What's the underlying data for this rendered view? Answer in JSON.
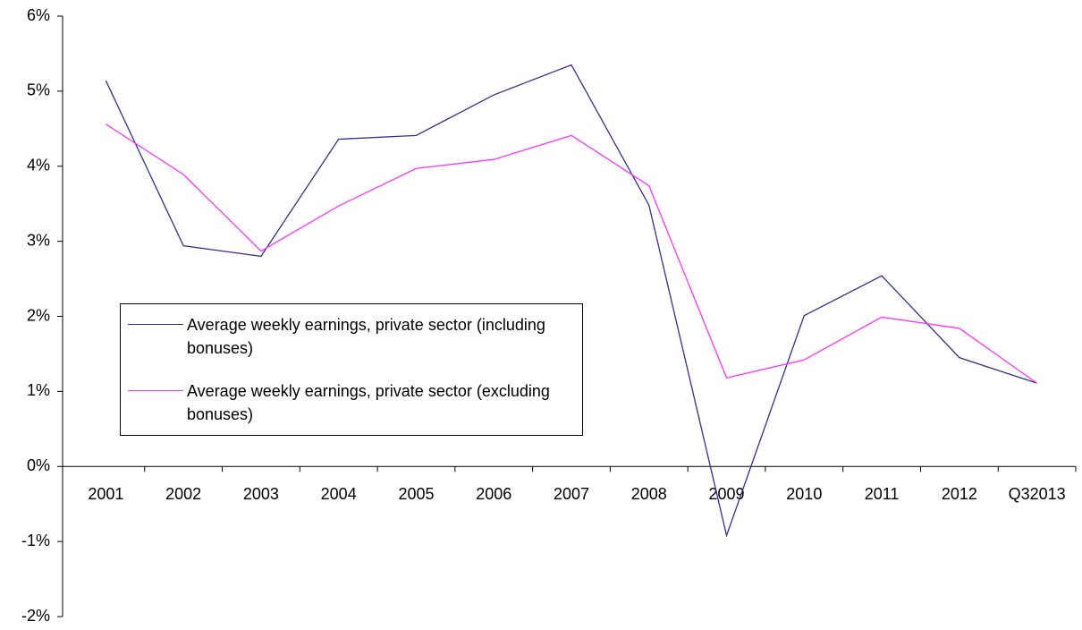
{
  "chart_data": {
    "type": "line",
    "categories": [
      "2001",
      "2002",
      "2003",
      "2004",
      "2005",
      "2006",
      "2007",
      "2008",
      "2009",
      "2010",
      "2011",
      "2012",
      "Q32013"
    ],
    "series": [
      {
        "name": "Average weekly earnings, private sector (including bonuses)",
        "color": "#2e3192",
        "values": [
          5.14,
          2.94,
          2.8,
          4.36,
          4.41,
          4.95,
          5.35,
          3.48,
          -0.92,
          2.01,
          2.54,
          1.45,
          1.11
        ]
      },
      {
        "name": "Average weekly earnings, private sector (excluding bonuses)",
        "color": "#ff33ff",
        "values": [
          4.56,
          3.89,
          2.87,
          3.47,
          3.97,
          4.09,
          4.41,
          3.74,
          1.18,
          1.42,
          1.99,
          1.84,
          1.11
        ]
      }
    ],
    "ylim": [
      -2,
      6
    ],
    "yticks": [
      {
        "value": -2,
        "label": "-2%"
      },
      {
        "value": -1,
        "label": "-1%"
      },
      {
        "value": 0,
        "label": "0%"
      },
      {
        "value": 1,
        "label": "1%"
      },
      {
        "value": 2,
        "label": "2%"
      },
      {
        "value": 3,
        "label": "3%"
      },
      {
        "value": 4,
        "label": "4%"
      },
      {
        "value": 5,
        "label": "5%"
      },
      {
        "value": 6,
        "label": "6%"
      }
    ],
    "grid": false
  }
}
